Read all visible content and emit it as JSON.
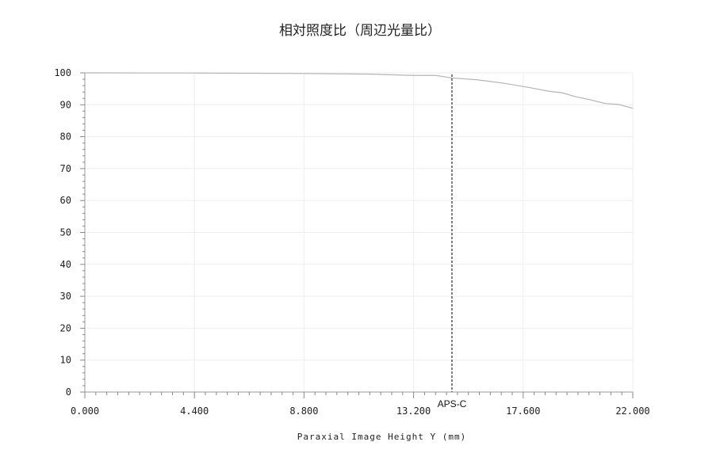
{
  "chart_data": {
    "type": "line",
    "title": "相対照度比（周辺光量比）",
    "xlabel": "Paraxial Image Height Y (mm)",
    "ylabel": "",
    "xlim": [
      0,
      22
    ],
    "ylim": [
      0,
      100
    ],
    "x_ticks": [
      "0.000",
      "4.400",
      "8.800",
      "13.200",
      "17.600",
      "22.000"
    ],
    "y_ticks": [
      "0",
      "10",
      "20",
      "30",
      "40",
      "50",
      "60",
      "70",
      "80",
      "90",
      "100"
    ],
    "grid": true,
    "series": [
      {
        "color": "#b4b4b4",
        "x": [
          0,
          4.4,
          8.8,
          11.5,
          13.15,
          14.1,
          14.74,
          15.8,
          16.87,
          17.92,
          18.66,
          19.14,
          19.73,
          20.38,
          20.9,
          21.43,
          22.0
        ],
        "y": [
          100,
          99.95,
          99.8,
          99.6,
          99.2,
          99.2,
          98.4,
          97.8,
          96.7,
          95.3,
          94.2,
          93.8,
          92.5,
          91.4,
          90.4,
          90.1,
          88.9
        ]
      }
    ],
    "annotations": [
      {
        "type": "vline",
        "x": 14.74,
        "label": "APS-C",
        "style": "dashed",
        "color": "#000000"
      }
    ]
  }
}
